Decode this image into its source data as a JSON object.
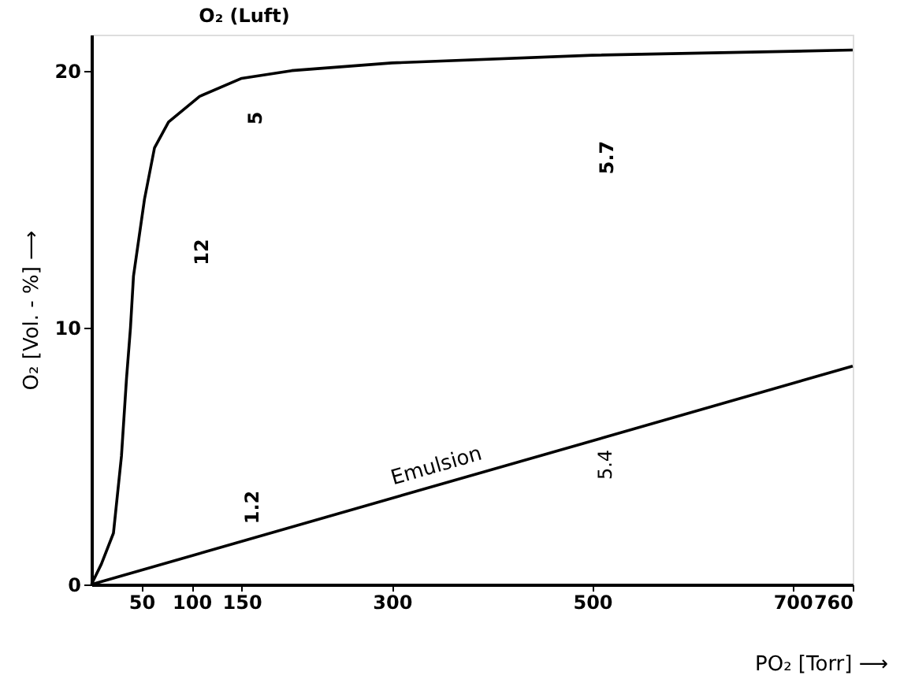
{
  "chart_data": {
    "type": "line",
    "xlabel": "PO₂ [Torr] ⟶",
    "ylabel": "O₂ [Vol. - %] ⟶",
    "xlim": [
      0,
      760
    ],
    "xticks": [
      50,
      100,
      150,
      300,
      500,
      700,
      760
    ],
    "ylim": [
      0,
      21.4
    ],
    "yticks": [
      0,
      10,
      20
    ],
    "grid": false,
    "marker": "none",
    "line_style": "solid",
    "series": [
      {
        "color": "#000000",
        "x": [
          0,
          10,
          22,
          30,
          35,
          39,
          42,
          53,
          63,
          77,
          108,
          150,
          200,
          300,
          500,
          760
        ],
        "values": [
          0,
          0.8,
          2,
          5,
          8,
          10,
          12,
          15,
          17,
          18,
          19,
          19.7,
          20,
          20.3,
          20.6,
          20.8
        ]
      },
      {
        "name": "Emulsion",
        "color": "#000000",
        "x": [
          0,
          760
        ],
        "values": [
          0,
          8.5
        ]
      }
    ],
    "annotations": [
      "O₂ (Luft)",
      "5",
      "12",
      "5.7",
      "1.2",
      "5.4"
    ]
  }
}
